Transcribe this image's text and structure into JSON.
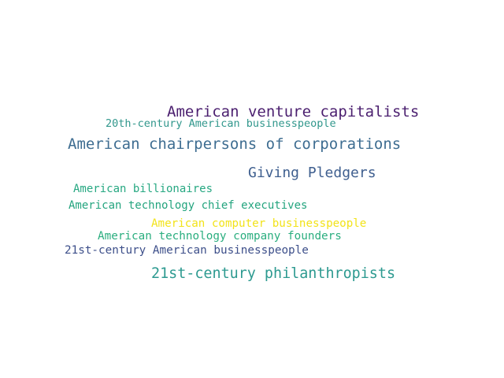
{
  "word_cloud": {
    "words": [
      {
        "text": "American venture capitalists",
        "color": "#4b1f6f"
      },
      {
        "text": "20th-century American businesspeople",
        "color": "#31978c"
      },
      {
        "text": "American chairpersons of corporations",
        "color": "#3e6d91"
      },
      {
        "text": "Giving Pledgers",
        "color": "#3f5f8f"
      },
      {
        "text": "American billionaires",
        "color": "#27a882"
      },
      {
        "text": "American technology chief executives",
        "color": "#23a47e"
      },
      {
        "text": "American computer businesspeople",
        "color": "#f2e31a"
      },
      {
        "text": "American technology company founders",
        "color": "#2bae7f"
      },
      {
        "text": "21st-century American businesspeople",
        "color": "#3d4f8a"
      },
      {
        "text": "21st-century philanthropists",
        "color": "#2d9a90"
      }
    ]
  }
}
